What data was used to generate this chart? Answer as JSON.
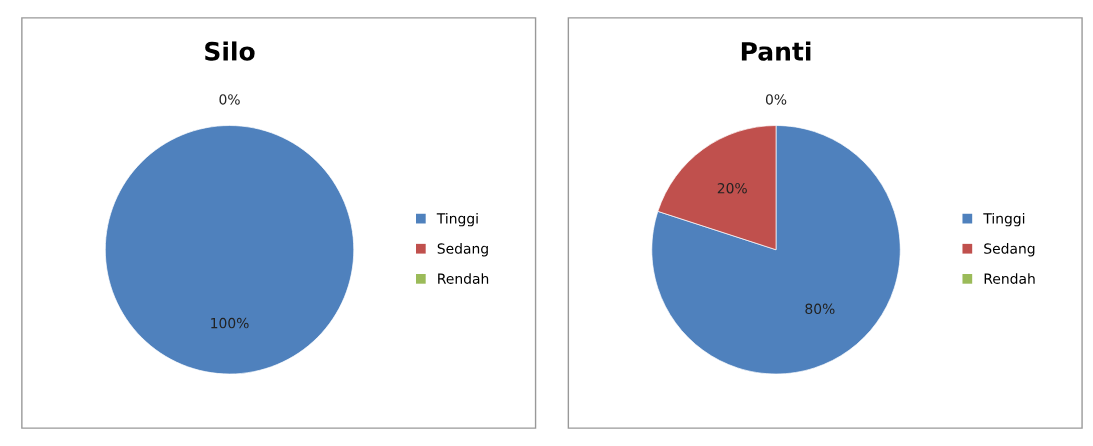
{
  "chart_data": [
    {
      "type": "pie",
      "title": "Silo",
      "categories": [
        "Tinggi",
        "Sedang",
        "Rendah"
      ],
      "values": [
        100,
        0,
        0
      ],
      "colors": [
        "#4f81bd",
        "#c0504d",
        "#9bbb59"
      ],
      "value_labels": [
        "100%",
        null,
        "0%"
      ],
      "legend": "right"
    },
    {
      "type": "pie",
      "title": "Panti",
      "categories": [
        "Tinggi",
        "Sedang",
        "Rendah"
      ],
      "values": [
        80,
        20,
        0
      ],
      "colors": [
        "#4f81bd",
        "#c0504d",
        "#9bbb59"
      ],
      "value_labels": [
        "80%",
        "20%",
        "0%"
      ],
      "legend": "right"
    }
  ]
}
